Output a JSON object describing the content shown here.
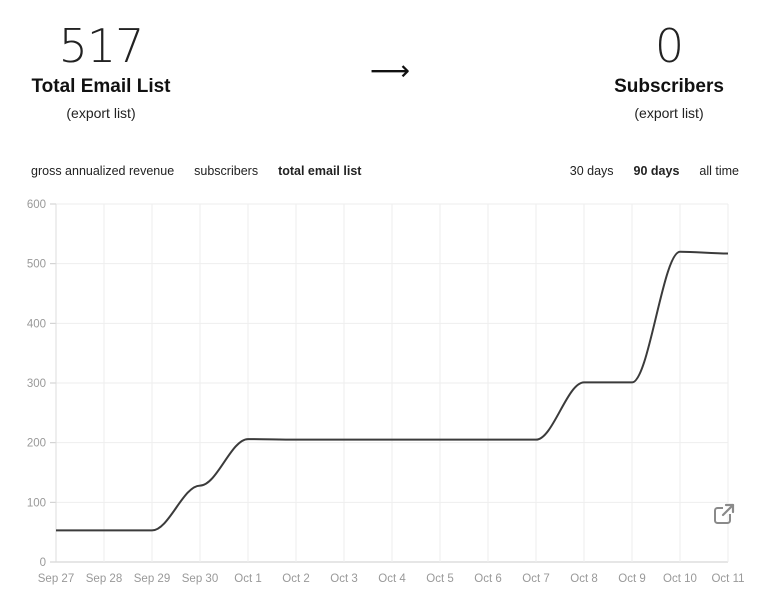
{
  "stats": {
    "left": {
      "number": "517",
      "label": "Total Email List",
      "link": "(export list)"
    },
    "arrow": "⟶",
    "right": {
      "number": "0",
      "label": "Subscribers",
      "link": "(export list)"
    }
  },
  "metric_tabs": [
    {
      "label": "gross annualized revenue",
      "active": false
    },
    {
      "label": "subscribers",
      "active": false
    },
    {
      "label": "total email list",
      "active": true
    }
  ],
  "range_tabs": [
    {
      "label": "30 days",
      "active": false
    },
    {
      "label": "90 days",
      "active": true
    },
    {
      "label": "all time",
      "active": false
    }
  ],
  "icons": {
    "popout": "external-link-icon"
  },
  "colors": {
    "line": "#3b3b3b",
    "grid": "#eeeeee",
    "axis": "#999999"
  },
  "chart_data": {
    "type": "line",
    "title": "",
    "xlabel": "",
    "ylabel": "",
    "grid": true,
    "categories": [
      "Sep 27",
      "Sep 28",
      "Sep 29",
      "Sep 30",
      "Oct 1",
      "Oct 2",
      "Oct 3",
      "Oct 4",
      "Oct 5",
      "Oct 6",
      "Oct 7",
      "Oct 8",
      "Oct 9",
      "Oct 10",
      "Oct 11"
    ],
    "y_ticks": [
      0,
      100,
      200,
      300,
      400,
      500,
      600
    ],
    "ylim": [
      0,
      600
    ],
    "series": [
      {
        "values": [
          53,
          53,
          53,
          128,
          206,
          205,
          205,
          205,
          205,
          205,
          205,
          301,
          301,
          520,
          517
        ]
      }
    ]
  }
}
